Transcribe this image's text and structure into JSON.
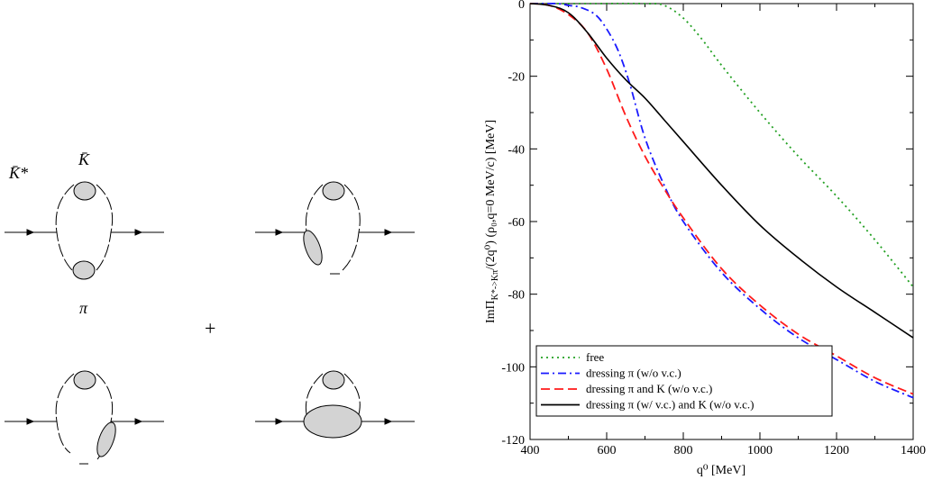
{
  "diagram": {
    "labels": {
      "kstar_bar": "K̄*",
      "k_bar": "K̄",
      "pi": "π",
      "plus": "+"
    }
  },
  "chart_data": {
    "type": "line",
    "xlabel": "q⁰ [MeV]",
    "ylabel_main": "ImΠ",
    "ylabel_sub": "K*->Kπ",
    "ylabel_tail": "/(2q⁰) (ρ₀,q=0 MeV/c) [MeV]",
    "xlim": [
      400,
      1400
    ],
    "ylim": [
      -120,
      0
    ],
    "xticks": [
      400,
      600,
      800,
      1000,
      1200,
      1400
    ],
    "yticks": [
      0,
      -20,
      -40,
      -60,
      -80,
      -100,
      -120
    ],
    "grid": false,
    "legend_position": "bottom-left",
    "series": [
      {
        "name": "free",
        "color": "#22a022",
        "style": "dotted",
        "x": [
          400,
          550,
          700,
          750,
          800,
          850,
          900,
          1000,
          1100,
          1200,
          1300,
          1400
        ],
        "y": [
          0,
          0,
          0,
          -0.5,
          -4,
          -10,
          -17,
          -30,
          -42,
          -53,
          -65,
          -78
        ]
      },
      {
        "name": "dressing π  (w/o v.c.)",
        "color": "#1a1aff",
        "style": "dashdot",
        "x": [
          400,
          470,
          500,
          530,
          570,
          600,
          630,
          660,
          700,
          750,
          800,
          900,
          1000,
          1100,
          1200,
          1300,
          1400
        ],
        "y": [
          0,
          0,
          -0.5,
          -1,
          -3,
          -7,
          -13,
          -22,
          -37,
          -50,
          -60,
          -74,
          -84,
          -92,
          -98,
          -104,
          -108.5
        ]
      },
      {
        "name": "dressing π and K (w/o v.c.)",
        "color": "#ff1a1a",
        "style": "dashed",
        "x": [
          400,
          450,
          500,
          550,
          600,
          650,
          700,
          750,
          800,
          900,
          1000,
          1100,
          1200,
          1300,
          1400
        ],
        "y": [
          0,
          -0.5,
          -3,
          -8,
          -18,
          -31,
          -42,
          -51,
          -59,
          -73,
          -83,
          -91,
          -97,
          -103,
          -107.5
        ]
      },
      {
        "name": "dressing π  (w/ v.c.) and K (w/o v.c.)",
        "color": "#000000",
        "style": "solid",
        "x": [
          400,
          450,
          500,
          550,
          600,
          650,
          700,
          750,
          800,
          900,
          1000,
          1100,
          1200,
          1300,
          1400
        ],
        "y": [
          0,
          -0.5,
          -2.5,
          -8,
          -15,
          -21,
          -26,
          -32,
          -38,
          -50,
          -61,
          -70,
          -78,
          -85,
          -92
        ]
      }
    ]
  }
}
